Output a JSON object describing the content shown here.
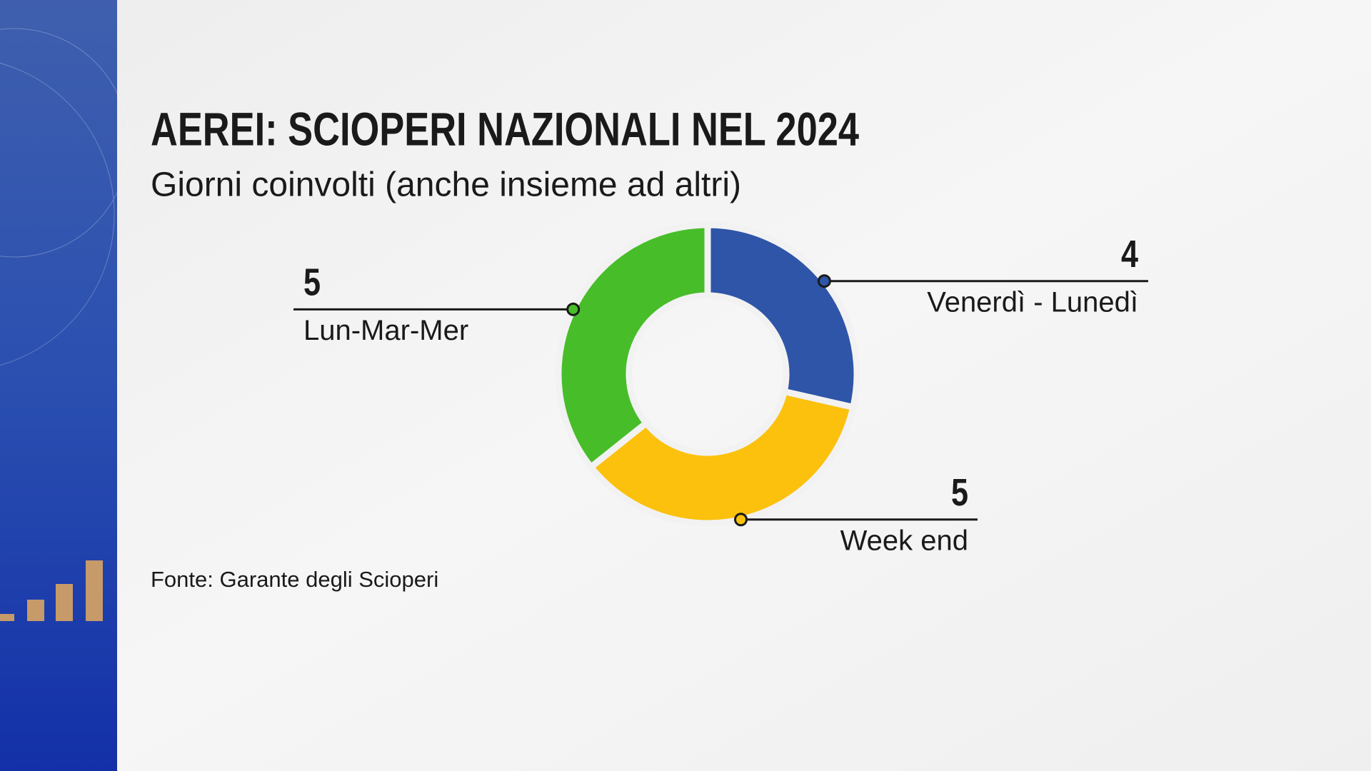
{
  "chart_data": {
    "type": "donut",
    "title": "AEREI: SCIOPERI NAZIONALI NEL 2024",
    "subtitle": "Giorni coinvolti (anche insieme ad altri)",
    "source": "Fonte: Garante degli Scioperi",
    "categories": [
      "Venerdì - Lunedì",
      "Week end",
      "Lun-Mar-Mer"
    ],
    "values": [
      4,
      5,
      5
    ],
    "colors": [
      "#2f55a8",
      "#fbc10d",
      "#48bd2a"
    ]
  }
}
